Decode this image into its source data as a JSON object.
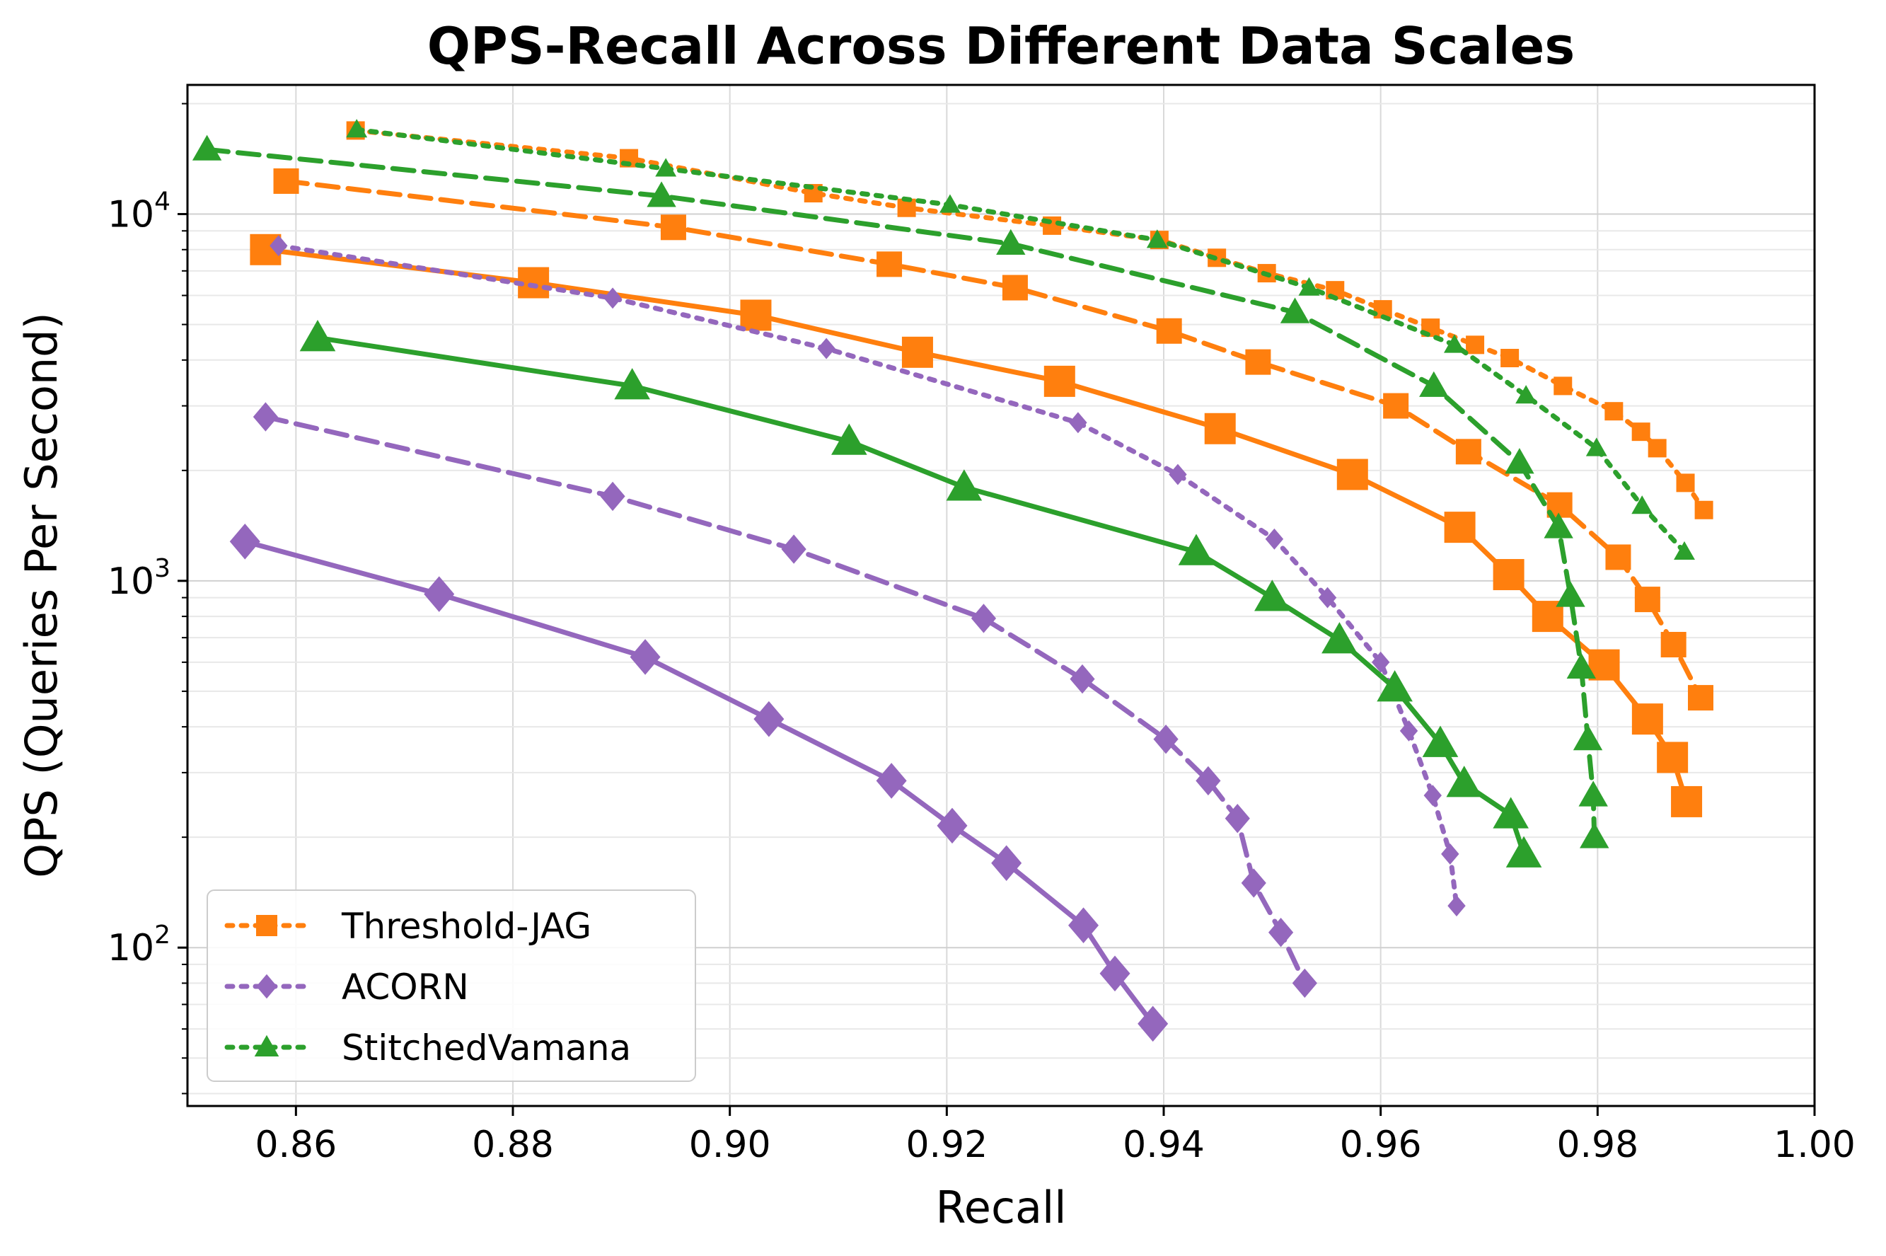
{
  "chart_data": {
    "type": "line",
    "title": "QPS-Recall Across Different Data Scales",
    "xlabel": "Recall",
    "ylabel": "QPS (Queries Per Second)",
    "xscale": "linear",
    "yscale": "log",
    "xlim": [
      0.85,
      1.0
    ],
    "ylim": [
      37,
      22500
    ],
    "grid": true,
    "legend_position": "lower-left",
    "x_ticks": [
      {
        "value": 0.86,
        "label": "0.86"
      },
      {
        "value": 0.88,
        "label": "0.88"
      },
      {
        "value": 0.9,
        "label": "0.90"
      },
      {
        "value": 0.92,
        "label": "0.92"
      },
      {
        "value": 0.94,
        "label": "0.94"
      },
      {
        "value": 0.96,
        "label": "0.96"
      },
      {
        "value": 0.98,
        "label": "0.98"
      },
      {
        "value": 1.0,
        "label": "1.00"
      }
    ],
    "y_ticks": [
      {
        "value": 100,
        "base": "10",
        "exp": "2"
      },
      {
        "value": 1000,
        "base": "10",
        "exp": "3"
      },
      {
        "value": 10000,
        "base": "10",
        "exp": "4"
      }
    ],
    "legend": [
      {
        "label": "Threshold-JAG",
        "color": "#ff7f0e",
        "marker": "square",
        "dash": "dotted"
      },
      {
        "label": "ACORN",
        "color": "#9467bd",
        "marker": "diamond",
        "dash": "dotted"
      },
      {
        "label": "StitchedVamana",
        "color": "#2ca02c",
        "marker": "triangle",
        "dash": "dotted"
      }
    ],
    "series": [
      {
        "method": "Threshold-JAG",
        "dash": "dotted",
        "color": "#ff7f0e",
        "marker": "square",
        "marker_size": "small",
        "x": [
          0.8655,
          0.8907,
          0.9077,
          0.9163,
          0.9297,
          0.9396,
          0.9449,
          0.9495,
          0.9558,
          0.9602,
          0.9646,
          0.9687,
          0.9719,
          0.9768,
          0.9815,
          0.984,
          0.9855,
          0.9881,
          0.9898
        ],
        "y": [
          16900,
          14200,
          11400,
          10400,
          9300,
          8500,
          7600,
          6900,
          6200,
          5500,
          4900,
          4400,
          4050,
          3400,
          2900,
          2550,
          2300,
          1850,
          1560
        ]
      },
      {
        "method": "Threshold-JAG",
        "dash": "dashed",
        "color": "#ff7f0e",
        "marker": "square",
        "marker_size": "medium",
        "x": [
          0.8591,
          0.8948,
          0.9147,
          0.9263,
          0.9405,
          0.9487,
          0.9614,
          0.9681,
          0.9765,
          0.9819,
          0.9846,
          0.987,
          0.9895
        ],
        "y": [
          12300,
          9200,
          7300,
          6300,
          4800,
          3950,
          3000,
          2250,
          1610,
          1160,
          890,
          670,
          480
        ]
      },
      {
        "method": "Threshold-JAG",
        "dash": "solid",
        "color": "#ff7f0e",
        "marker": "square",
        "marker_size": "large",
        "x": [
          0.8572,
          0.8819,
          0.9024,
          0.9173,
          0.9304,
          0.9452,
          0.9574,
          0.9673,
          0.9718,
          0.9754,
          0.9806,
          0.9846,
          0.9869,
          0.9882
        ],
        "y": [
          8000,
          6500,
          5300,
          4200,
          3500,
          2600,
          1950,
          1400,
          1040,
          800,
          590,
          420,
          330,
          250
        ]
      },
      {
        "method": "ACORN",
        "dash": "dotted",
        "color": "#9467bd",
        "marker": "diamond",
        "marker_size": "small",
        "x": [
          0.8584,
          0.8892,
          0.9089,
          0.9321,
          0.9413,
          0.9502,
          0.9551,
          0.96,
          0.9626,
          0.9648,
          0.9664,
          0.967
        ],
        "y": [
          8200,
          5900,
          4300,
          2700,
          1950,
          1300,
          900,
          600,
          390,
          260,
          180,
          130
        ]
      },
      {
        "method": "ACORN",
        "dash": "dashed",
        "color": "#9467bd",
        "marker": "diamond",
        "marker_size": "medium",
        "x": [
          0.8572,
          0.8892,
          0.9059,
          0.9234,
          0.9325,
          0.9402,
          0.9441,
          0.9468,
          0.9483,
          0.9508,
          0.953
        ],
        "y": [
          2800,
          1700,
          1220,
          790,
          540,
          370,
          285,
          225,
          150,
          110,
          80
        ]
      },
      {
        "method": "ACORN",
        "dash": "solid",
        "color": "#9467bd",
        "marker": "diamond",
        "marker_size": "large",
        "x": [
          0.8553,
          0.8732,
          0.8922,
          0.9036,
          0.9149,
          0.9205,
          0.9255,
          0.9326,
          0.9355,
          0.939
        ],
        "y": [
          1280,
          920,
          620,
          420,
          285,
          215,
          170,
          115,
          85,
          62
        ]
      },
      {
        "method": "StitchedVamana",
        "dash": "dotted",
        "color": "#2ca02c",
        "marker": "triangle",
        "marker_size": "small",
        "x": [
          0.8656,
          0.8941,
          0.9203,
          0.9394,
          0.9534,
          0.9668,
          0.9734,
          0.9799,
          0.9841,
          0.988
        ],
        "y": [
          17000,
          13300,
          10600,
          8500,
          6300,
          4400,
          3200,
          2300,
          1600,
          1200
        ]
      },
      {
        "method": "StitchedVamana",
        "dash": "dashed",
        "color": "#2ca02c",
        "marker": "triangle",
        "marker_size": "medium",
        "x": [
          0.8518,
          0.8937,
          0.9259,
          0.9521,
          0.9649,
          0.9728,
          0.9764,
          0.9775,
          0.9785,
          0.9791,
          0.9796,
          0.9797
        ],
        "y": [
          15000,
          11200,
          8300,
          5400,
          3400,
          2100,
          1400,
          910,
          580,
          370,
          260,
          200
        ]
      },
      {
        "method": "StitchedVamana",
        "dash": "solid",
        "color": "#2ca02c",
        "marker": "triangle",
        "marker_size": "large",
        "x": [
          0.862,
          0.891,
          0.911,
          0.9216,
          0.943,
          0.95,
          0.9562,
          0.9613,
          0.9655,
          0.9677,
          0.972,
          0.9732
        ],
        "y": [
          4600,
          3400,
          2400,
          1800,
          1200,
          900,
          690,
          510,
          360,
          280,
          230,
          180
        ]
      }
    ]
  }
}
